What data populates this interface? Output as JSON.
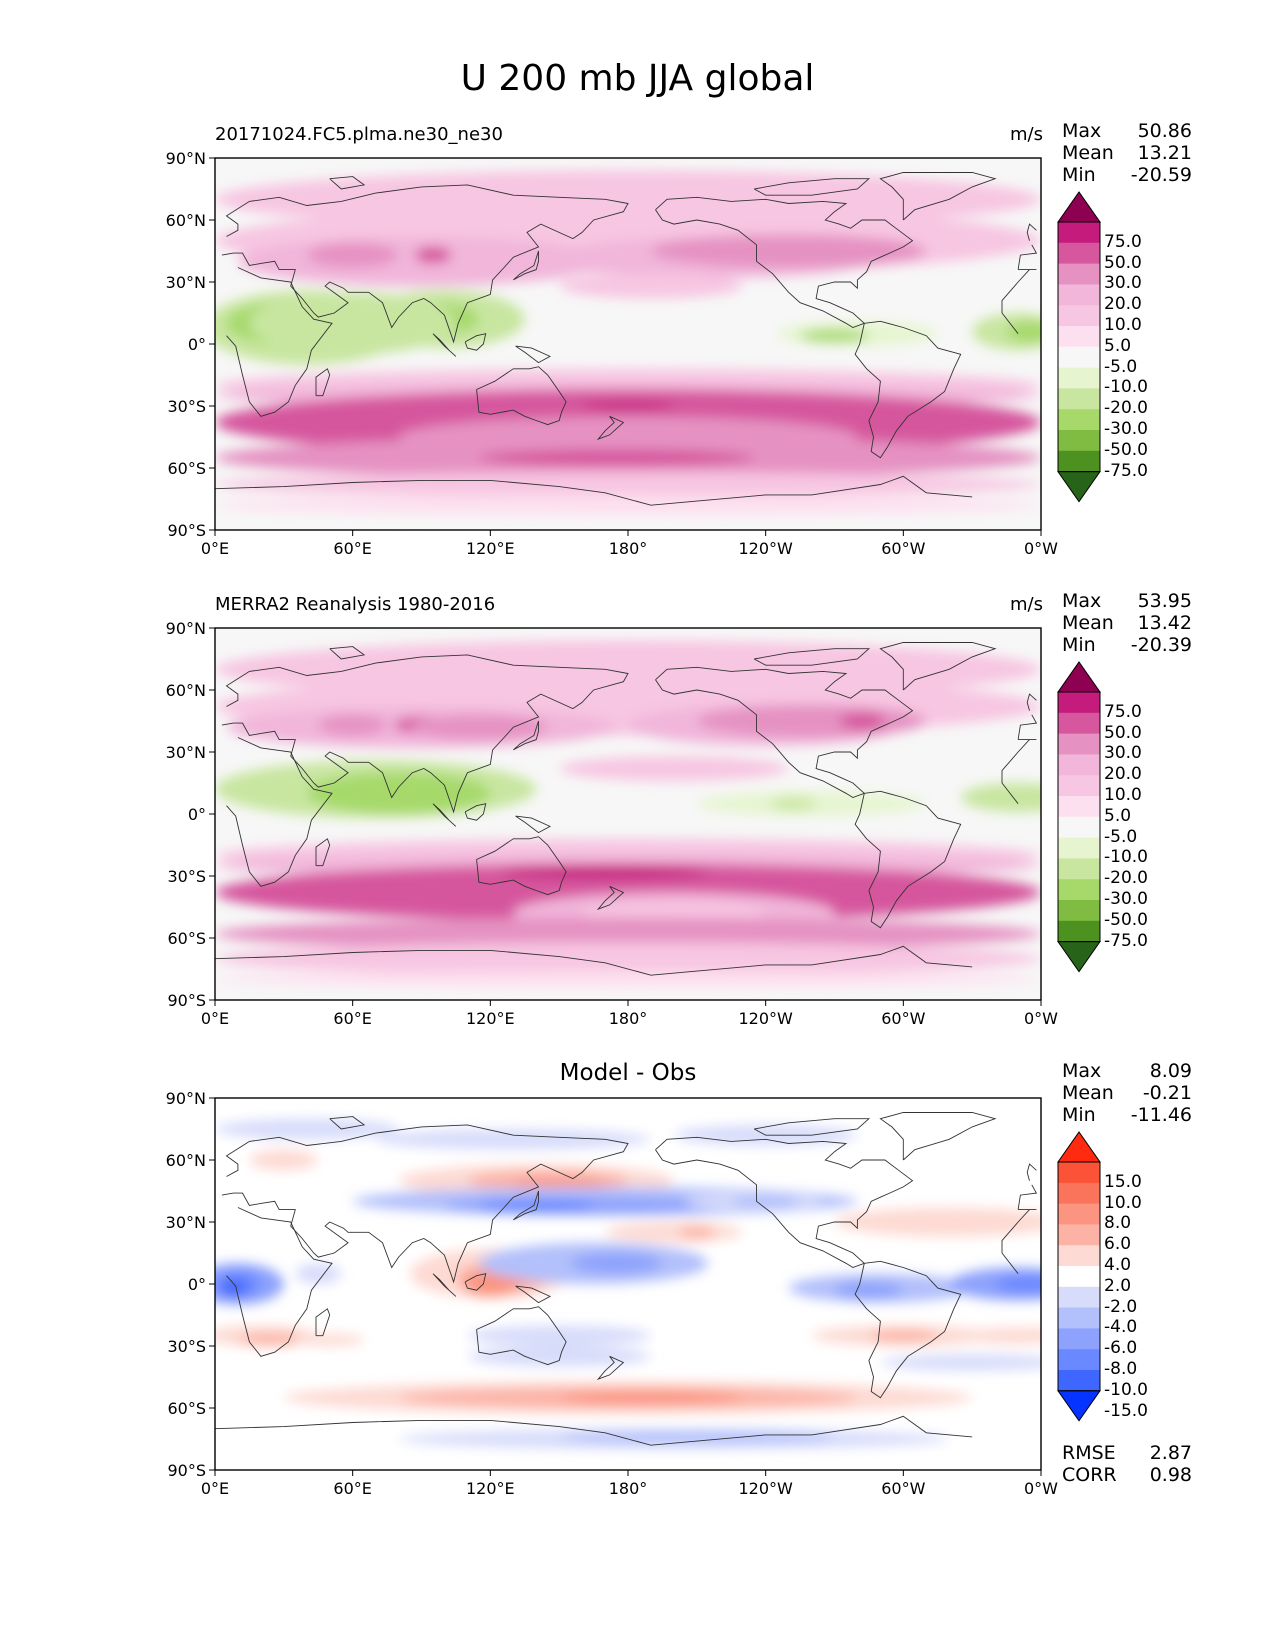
{
  "page_title": "U 200 mb JJA global",
  "colors": {
    "pink_scale": [
      "#276419",
      "#4d9221",
      "#7fbc41",
      "#a6d96a",
      "#c8e6a0",
      "#e6f5d0",
      "#f7f7f7",
      "#fde0ef",
      "#f7c6e2",
      "#f1b6da",
      "#e592c2",
      "#d6579e",
      "#c51b7d",
      "#8e0152"
    ],
    "diff_scale": [
      "#0533ff",
      "#3f66ff",
      "#6a88ff",
      "#8da2fc",
      "#b2c0fb",
      "#d7dcfa",
      "#ffffff",
      "#fddad3",
      "#fcb3a6",
      "#fb9480",
      "#fa745c",
      "#fc5238",
      "#ff2a10"
    ],
    "coast": "#333333"
  },
  "panels": [
    {
      "id": "model",
      "left_title": "20171024.FC5.plma.ne30_ne30",
      "center_title": "",
      "units": "m/s",
      "stats": {
        "max_label": "Max",
        "max": "50.86",
        "mean_label": "Mean",
        "mean": "13.21",
        "min_label": "Min",
        "min": "-20.59"
      }
    },
    {
      "id": "obs",
      "left_title": "MERRA2 Reanalysis 1980-2016",
      "center_title": "",
      "units": "m/s",
      "stats": {
        "max_label": "Max",
        "max": "53.95",
        "mean_label": "Mean",
        "mean": "13.42",
        "min_label": "Min",
        "min": "-20.39"
      }
    },
    {
      "id": "diff",
      "left_title": "",
      "center_title": "Model - Obs",
      "units": "",
      "stats": {
        "max_label": "Max",
        "max": "8.09",
        "mean_label": "Mean",
        "mean": "-0.21",
        "min_label": "Min",
        "min": "-11.46"
      },
      "rmse_label": "RMSE",
      "rmse": "2.87",
      "corr_label": "CORR",
      "corr": "0.98"
    }
  ],
  "colorbars": {
    "main_levels": [
      "75.0",
      "50.0",
      "30.0",
      "20.0",
      "10.0",
      "5.0",
      "-5.0",
      "-10.0",
      "-20.0",
      "-30.0",
      "-50.0",
      "-75.0"
    ],
    "diff_levels": [
      "15.0",
      "10.0",
      "8.0",
      "6.0",
      "4.0",
      "2.0",
      "-2.0",
      "-4.0",
      "-6.0",
      "-8.0",
      "-10.0",
      "-15.0"
    ]
  },
  "chart_data": [
    {
      "type": "heatmap",
      "title": "20171024.FC5.plma.ne30_ne30",
      "variable": "U 200 mb JJA",
      "units": "m/s",
      "x_ticks": [
        "0°E",
        "60°E",
        "120°E",
        "180°",
        "120°W",
        "60°W",
        "0°W"
      ],
      "y_ticks": [
        "90°N",
        "60°N",
        "30°N",
        "0°",
        "30°S",
        "60°S",
        "90°S"
      ],
      "xlim": [
        0,
        360
      ],
      "ylim": [
        -90,
        90
      ],
      "contour_levels": [
        -75,
        -50,
        -30,
        -20,
        -10,
        -5,
        5,
        10,
        20,
        30,
        50,
        75
      ],
      "max": 50.86,
      "mean": 13.21,
      "min": -20.59
    },
    {
      "type": "heatmap",
      "title": "MERRA2 Reanalysis 1980-2016",
      "variable": "U 200 mb JJA",
      "units": "m/s",
      "x_ticks": [
        "0°E",
        "60°E",
        "120°E",
        "180°",
        "120°W",
        "60°W",
        "0°W"
      ],
      "y_ticks": [
        "90°N",
        "60°N",
        "30°N",
        "0°",
        "30°S",
        "60°S",
        "90°S"
      ],
      "xlim": [
        0,
        360
      ],
      "ylim": [
        -90,
        90
      ],
      "contour_levels": [
        -75,
        -50,
        -30,
        -20,
        -10,
        -5,
        5,
        10,
        20,
        30,
        50,
        75
      ],
      "max": 53.95,
      "mean": 13.42,
      "min": -20.39
    },
    {
      "type": "heatmap",
      "title": "Model - Obs",
      "variable": "U 200 mb JJA difference",
      "x_ticks": [
        "0°E",
        "60°E",
        "120°E",
        "180°",
        "120°W",
        "60°W",
        "0°W"
      ],
      "y_ticks": [
        "90°N",
        "60°N",
        "30°N",
        "0°",
        "30°S",
        "60°S",
        "90°S"
      ],
      "xlim": [
        0,
        360
      ],
      "ylim": [
        -90,
        90
      ],
      "contour_levels": [
        -15,
        -10,
        -8,
        -6,
        -4,
        -2,
        2,
        4,
        6,
        8,
        10,
        15
      ],
      "max": 8.09,
      "mean": -0.21,
      "min": -11.46,
      "rmse": 2.87,
      "corr": 0.98
    }
  ]
}
